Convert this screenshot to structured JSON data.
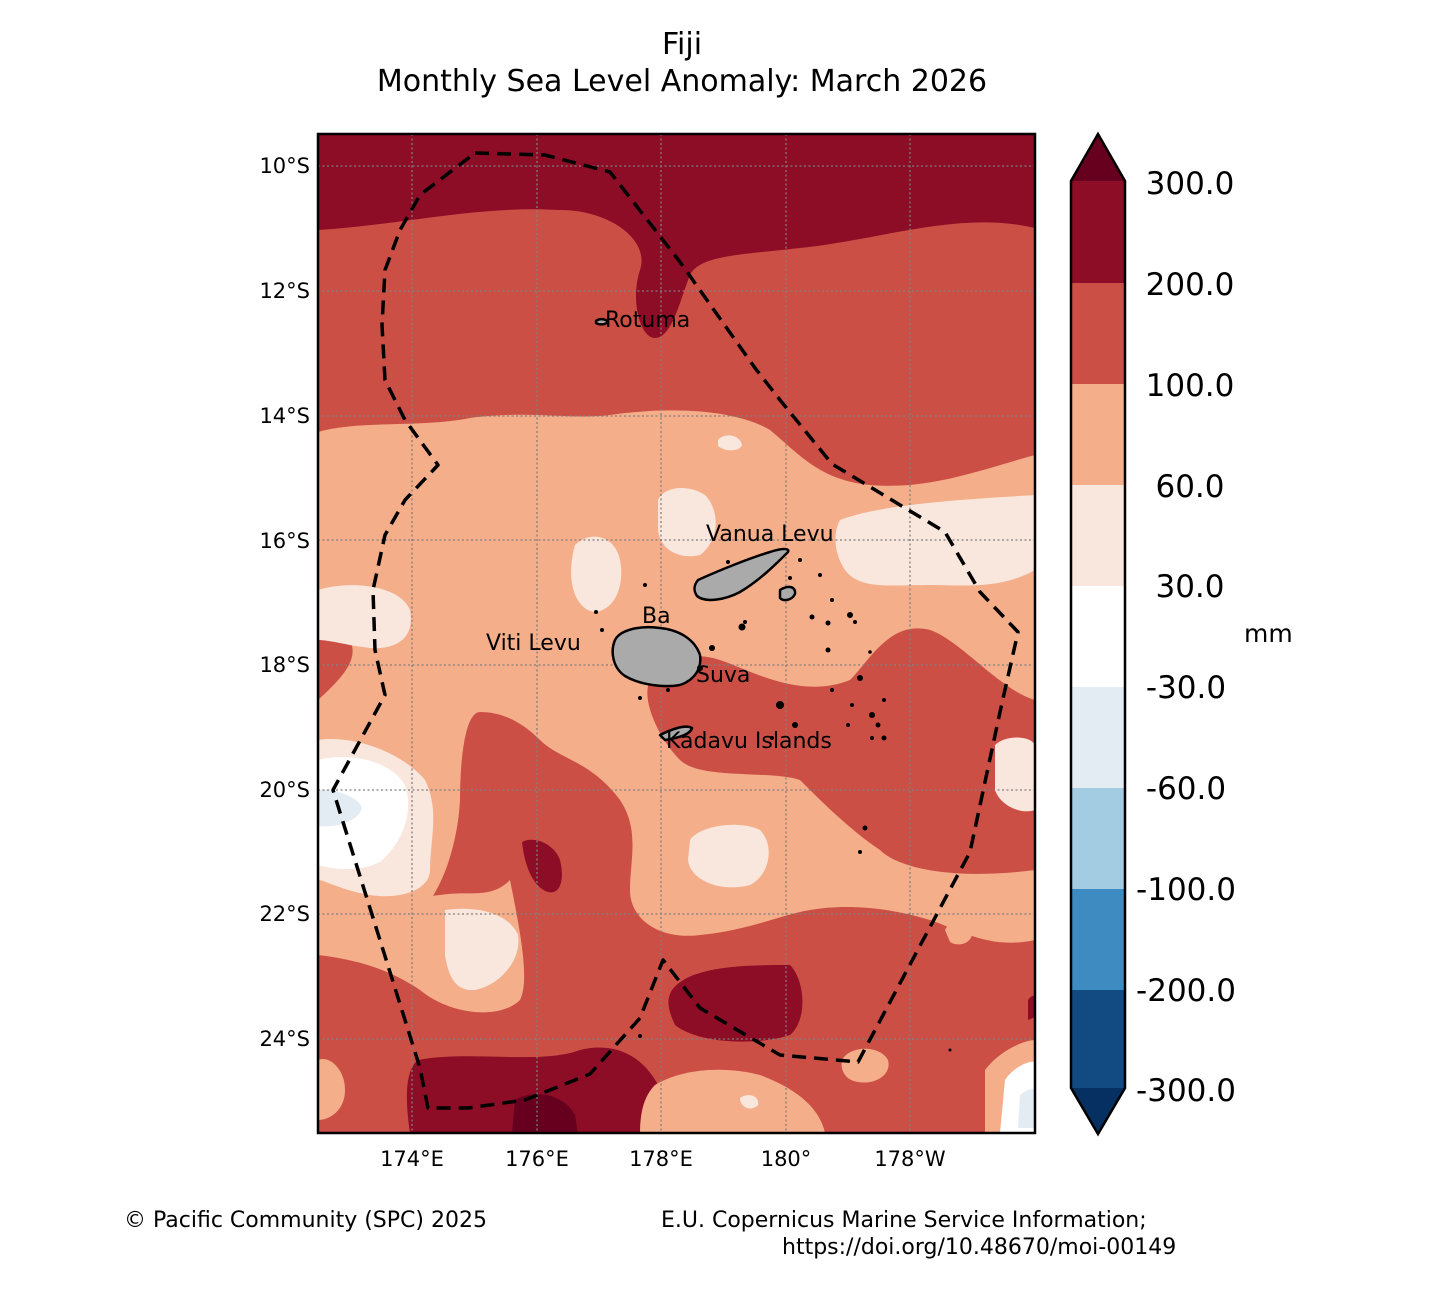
{
  "title": {
    "line1": "Fiji",
    "line2": "Monthly Sea Level Anomaly: March 2026"
  },
  "map": {
    "lat_labels": [
      "10°S",
      "12°S",
      "14°S",
      "16°S",
      "18°S",
      "20°S",
      "22°S",
      "24°S"
    ],
    "lon_labels": [
      "174°E",
      "176°E",
      "178°E",
      "180°",
      "178°W"
    ],
    "places": [
      {
        "name": "Rotuma",
        "lon": 177.05,
        "lat": -12.45
      },
      {
        "name": "Vanua Levu",
        "lon": 178.7,
        "lat": -15.9
      },
      {
        "name": "Ba",
        "lon": 177.6,
        "lat": -17.3
      },
      {
        "name": "Viti Levu",
        "lon": 175.2,
        "lat": -17.6
      },
      {
        "name": "Suva",
        "lon": 178.45,
        "lat": -18.05
      },
      {
        "name": "Kadavu Islands",
        "lon": 178.1,
        "lat": -19.15
      }
    ]
  },
  "colorbar": {
    "unit": "mm",
    "tick_labels": [
      "300.0",
      "200.0",
      "100.0",
      "60.0",
      "30.0",
      "-30.0",
      "-60.0",
      "-100.0",
      "-200.0",
      "-300.0"
    ],
    "colors_top_to_bottom": [
      "#8c0d25",
      "#cc4f46",
      "#f4ae8a",
      "#f9e6dc",
      "#ffffff",
      "#e4ecf3",
      "#a3cce2",
      "#3d8bc1",
      "#124a82"
    ],
    "over_color": "#67001f",
    "under_color": "#053061"
  },
  "chart_data": {
    "type": "heatmap",
    "title": "Fiji Monthly Sea Level Anomaly: March 2026",
    "unit": "mm",
    "lon_range": [
      172.5,
      184
    ],
    "lat_range": [
      -25.5,
      -9.5
    ],
    "levels": [
      -300,
      -200,
      -100,
      -60,
      -30,
      30,
      60,
      100,
      200,
      300
    ],
    "dominant_band": "100.0 to 200.0"
  },
  "footer": {
    "copyright": "© Pacific Community (SPC) 2025",
    "source_line1": "E.U. Copernicus Marine Service Information;",
    "source_line2": "https://doi.org/10.48670/moi-00149"
  }
}
